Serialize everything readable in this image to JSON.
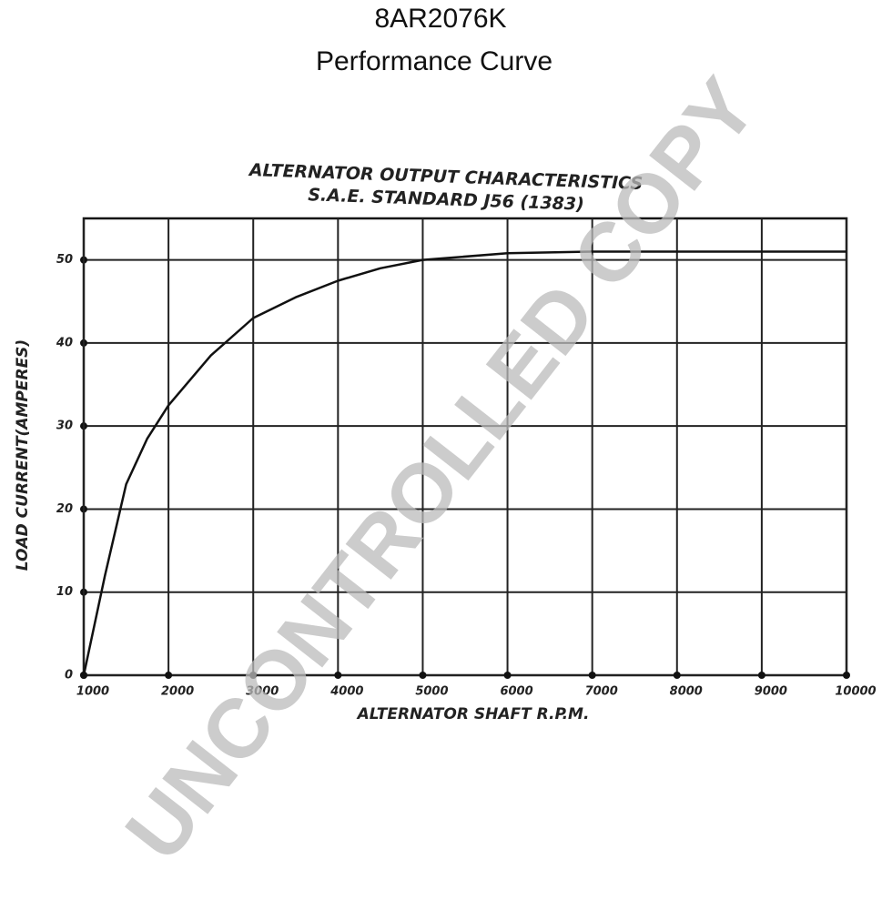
{
  "chart_data": {
    "type": "line",
    "title": "8AR2076K",
    "subtitle": "Performance Curve",
    "chart_title": "ALTERNATOR OUTPUT CHARACTERISTICS",
    "chart_subtitle": "S.A.E. STANDARD J56 (1383)",
    "xlabel": "ALTERNATOR SHAFT R.P.M.",
    "ylabel": "LOAD CURRENT(AMPERES)",
    "watermark": "UNCONTROLLED COPY",
    "x": [
      1000,
      1250,
      1500,
      1750,
      2000,
      2500,
      3000,
      3500,
      4000,
      4500,
      5000,
      6000,
      7000,
      8000,
      9000,
      10000
    ],
    "values": [
      0,
      12,
      23,
      28.5,
      32.5,
      38.5,
      43,
      45.5,
      47.5,
      49,
      50,
      50.8,
      51,
      51,
      51,
      51
    ],
    "color": "#111111",
    "xlim": [
      1000,
      10000
    ],
    "ylim": [
      0,
      55
    ],
    "xticks": [
      1000,
      2000,
      3000,
      4000,
      5000,
      6000,
      7000,
      8000,
      9000,
      10000
    ],
    "yticks": [
      0,
      10,
      20,
      30,
      40,
      50
    ],
    "grid": true
  }
}
